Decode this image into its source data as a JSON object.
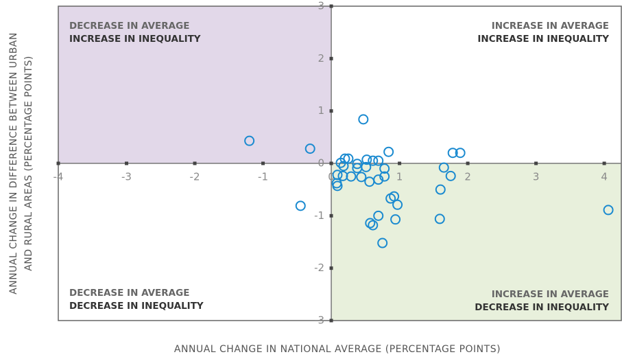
{
  "chart_data": {
    "type": "scatter",
    "xlabel": "ANNUAL CHANGE IN NATIONAL AVERAGE (PERCENTAGE POINTS)",
    "ylabel": [
      "ANNUAL CHANGE IN DIFFERENCE BETWEEN URBAN",
      "AND RURAL AREAS (PERCENTAGE POINTS)"
    ],
    "annotations": [
      [
        "DECREASE IN AVERAGE",
        "INCREASE IN INEQUALITY"
      ],
      [
        "INCREASE IN AVERAGE",
        "INCREASE IN INEQUALITY"
      ],
      [
        "DECREASE IN AVERAGE",
        "DECREASE IN INEQUALITY"
      ],
      [
        "INCREASE IN AVERAGE",
        "DECREASE IN INEQUALITY"
      ]
    ],
    "color": "#1a8ad0",
    "xlim": [
      -4,
      4.25
    ],
    "ylim": [
      -3,
      3
    ],
    "xticks": [
      -4,
      -3,
      -2,
      -1,
      0,
      1,
      2,
      3,
      4
    ],
    "yticks": [
      -3,
      -2,
      -1,
      0,
      1,
      2,
      3
    ],
    "x": [
      -1.2,
      -0.31,
      0.47,
      -0.45,
      0.14,
      0.2,
      0.25,
      0.18,
      0.09,
      0.17,
      0.08,
      0.09,
      0.29,
      0.38,
      0.38,
      0.44,
      0.51,
      0.52,
      0.61,
      0.69,
      0.56,
      0.69,
      0.78,
      0.78,
      0.84,
      0.87,
      0.92,
      0.97,
      0.69,
      0.57,
      0.61,
      0.94,
      0.75,
      1.6,
      1.65,
      1.75,
      1.78,
      1.89,
      1.59,
      4.06
    ],
    "values": [
      0.43,
      0.28,
      0.84,
      -0.81,
      0.01,
      0.09,
      0.09,
      -0.05,
      -0.22,
      -0.24,
      -0.38,
      -0.43,
      -0.25,
      -0.01,
      -0.09,
      -0.26,
      -0.07,
      0.07,
      0.05,
      0.05,
      -0.35,
      -0.31,
      -0.1,
      -0.25,
      0.22,
      -0.67,
      -0.63,
      -0.79,
      -1.0,
      -1.14,
      -1.18,
      -1.07,
      -1.52,
      -0.5,
      -0.08,
      -0.24,
      0.2,
      0.2,
      -1.06,
      -0.89
    ]
  }
}
